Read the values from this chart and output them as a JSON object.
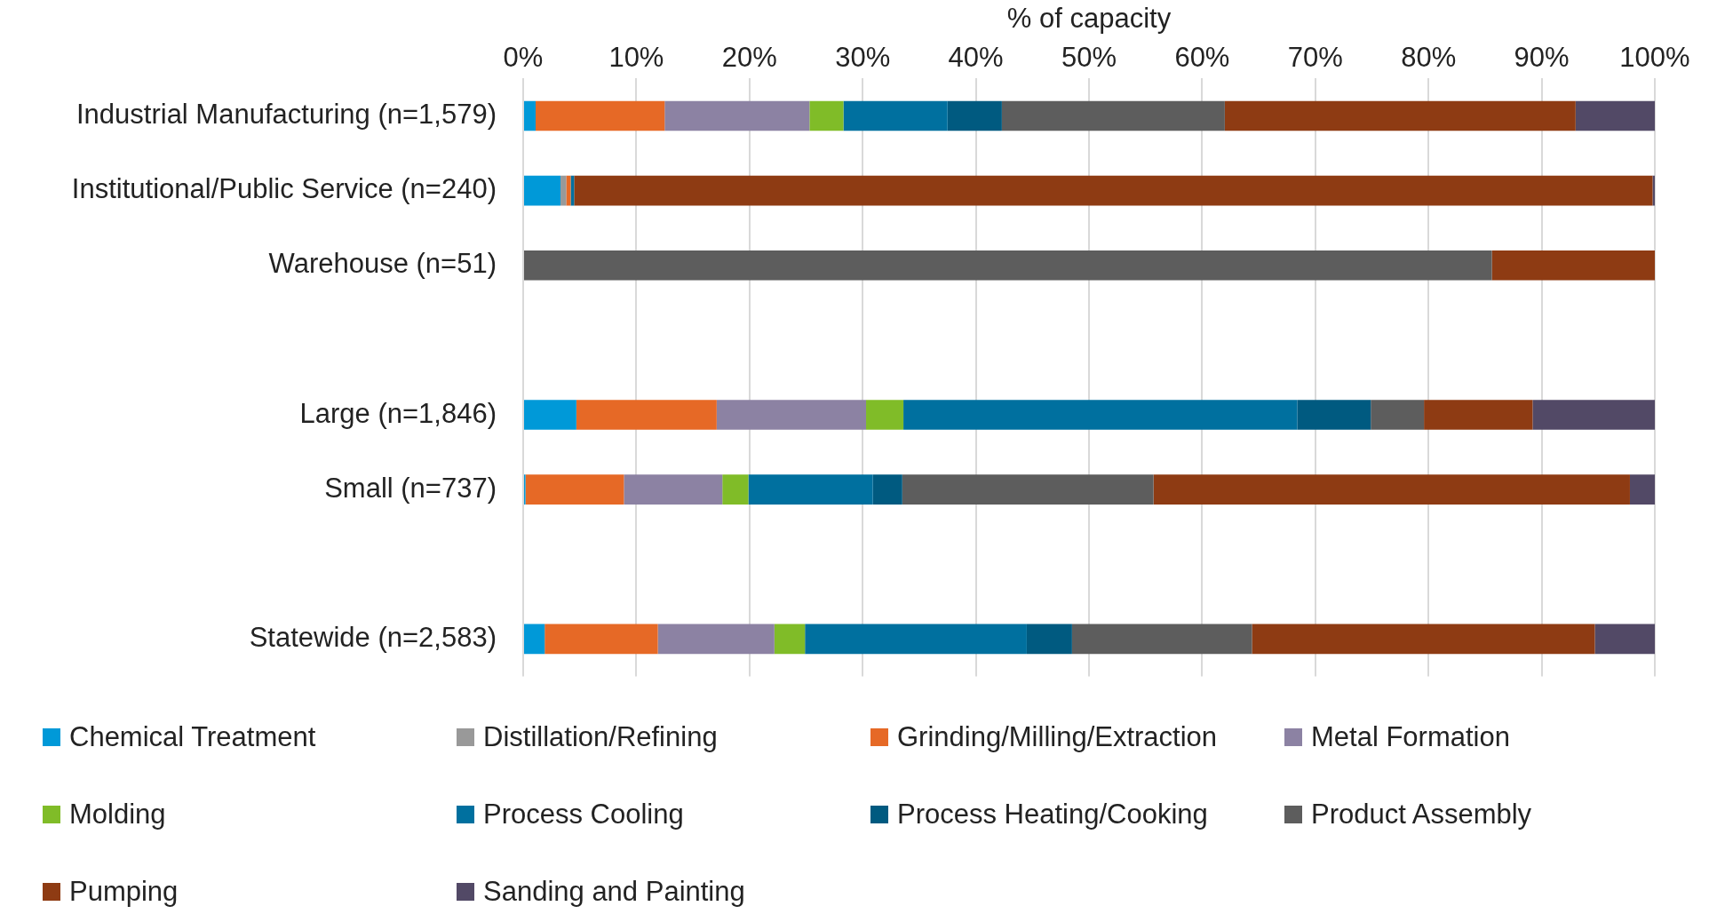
{
  "chart_data": {
    "type": "bar",
    "orientation": "horizontal",
    "stacked": true,
    "xlabel": "% of capacity",
    "categories": [
      "Industrial Manufacturing (n=1,579)",
      "Institutional/Public Service (n=240)",
      "Warehouse (n=51)",
      null,
      "Large (n=1,846)",
      "Small (n=737)",
      null,
      "Statewide (n=2,583)"
    ],
    "xlim": [
      0,
      100
    ],
    "xticks": [
      {
        "value": 0,
        "label": "0%"
      },
      {
        "value": 10,
        "label": "10%"
      },
      {
        "value": 20,
        "label": "20%"
      },
      {
        "value": 30,
        "label": "30%"
      },
      {
        "value": 40,
        "label": "40%"
      },
      {
        "value": 50,
        "label": "50%"
      },
      {
        "value": 60,
        "label": "60%"
      },
      {
        "value": 70,
        "label": "70%"
      },
      {
        "value": 80,
        "label": "80%"
      },
      {
        "value": 90,
        "label": "90%"
      },
      {
        "value": 100,
        "label": "100%"
      }
    ],
    "grid": "x",
    "legend": "bottom",
    "series": [
      {
        "name": "Chemical Treatment",
        "color": "#0099d8",
        "values": [
          1.1,
          3.3,
          0,
          null,
          4.7,
          0.2,
          null,
          1.9
        ]
      },
      {
        "name": "Distillation/Refining",
        "color": "#999999",
        "values": [
          0,
          0.5,
          0,
          null,
          0,
          0,
          null,
          0
        ]
      },
      {
        "name": "Grinding/Milling/Extraction",
        "color": "#e66926",
        "values": [
          11.4,
          0.4,
          0,
          null,
          12.4,
          8.7,
          null,
          10.0
        ]
      },
      {
        "name": "Metal Formation",
        "color": "#8c82a3",
        "values": [
          12.8,
          0,
          0,
          null,
          13.2,
          8.7,
          null,
          10.3
        ]
      },
      {
        "name": "Molding",
        "color": "#80bc28",
        "values": [
          3.0,
          0,
          0,
          null,
          3.3,
          2.3,
          null,
          2.7
        ]
      },
      {
        "name": "Process Cooling",
        "color": "#00709f",
        "values": [
          9.2,
          0.3,
          0,
          null,
          34.8,
          11.0,
          null,
          19.6
        ]
      },
      {
        "name": "Process Heating/Cooking",
        "color": "#005a80",
        "values": [
          4.8,
          0,
          0,
          null,
          6.5,
          2.6,
          null,
          4.0
        ]
      },
      {
        "name": "Product Assembly",
        "color": "#5d5d5d",
        "values": [
          19.7,
          0,
          85.6,
          null,
          4.7,
          22.2,
          null,
          15.9
        ]
      },
      {
        "name": "Pumping",
        "color": "#8e3b13",
        "values": [
          31.0,
          95.3,
          14.4,
          null,
          9.6,
          42.1,
          null,
          30.3
        ]
      },
      {
        "name": "Sanding and Painting",
        "color": "#524966",
        "values": [
          7.0,
          0.2,
          0,
          null,
          10.8,
          2.2,
          null,
          5.3
        ]
      }
    ]
  }
}
